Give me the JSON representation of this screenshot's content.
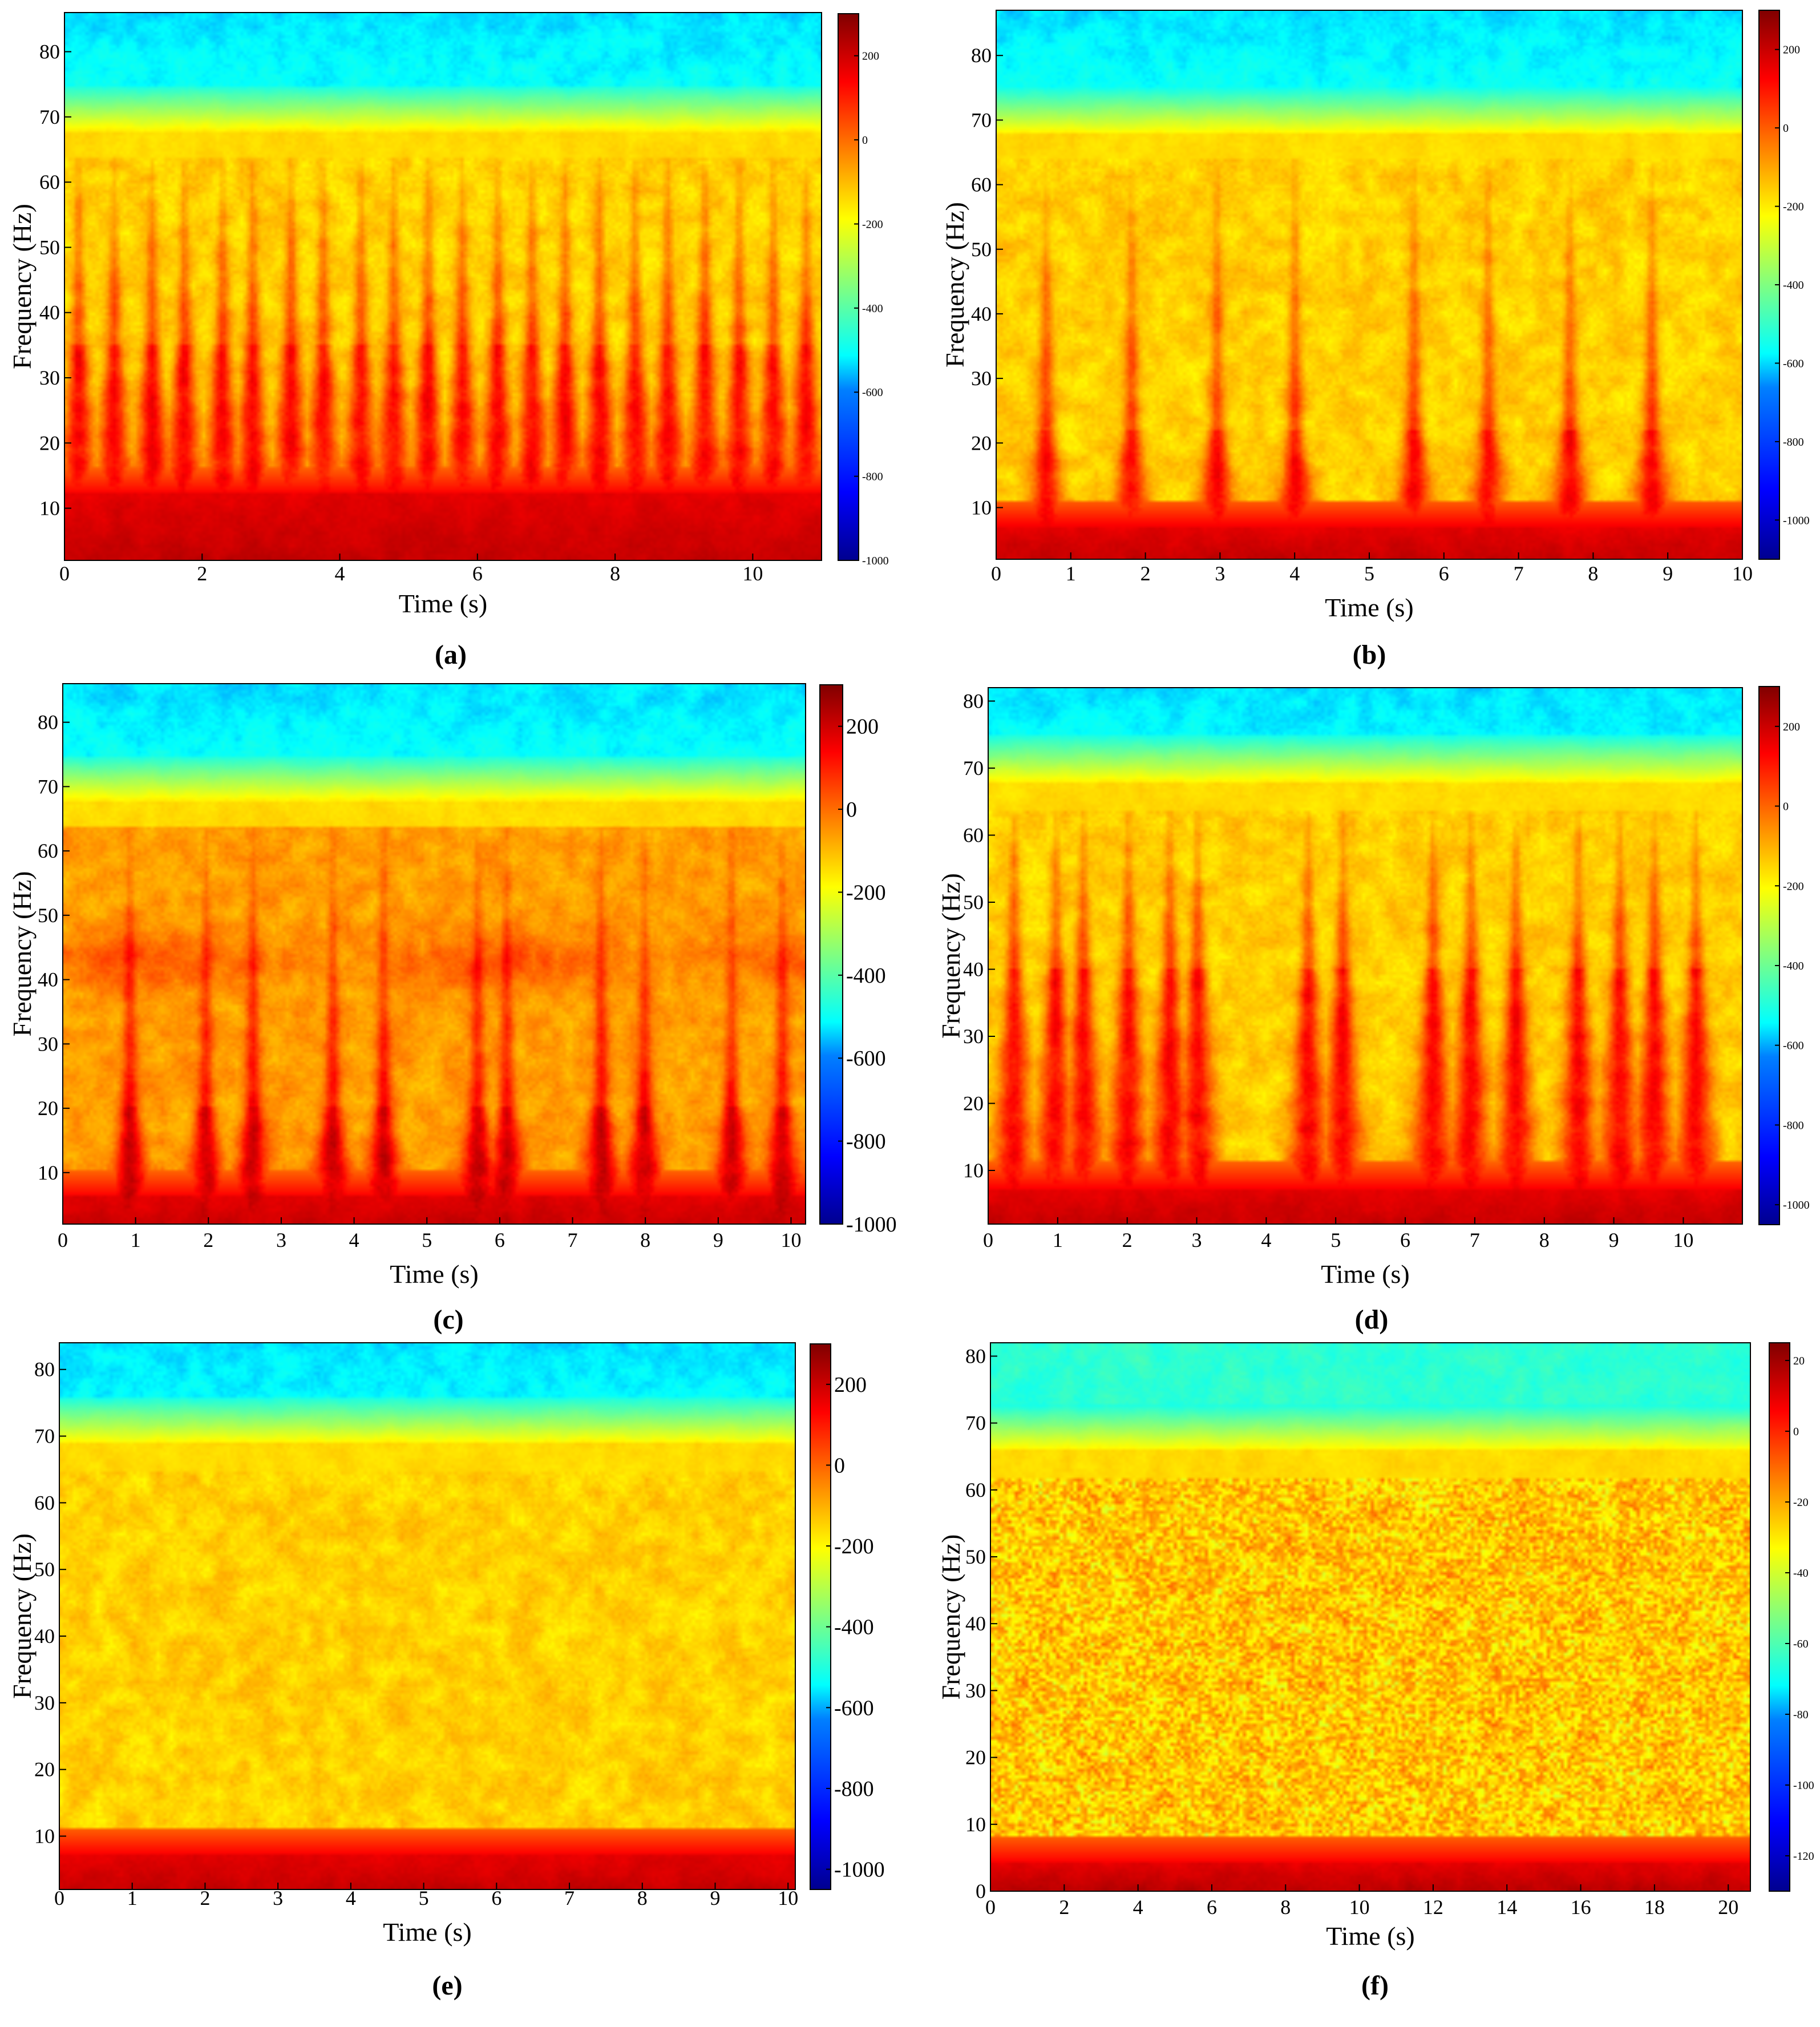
{
  "colors": {
    "jet_stops": [
      "#00008f",
      "#0000ff",
      "#0080ff",
      "#00ffff",
      "#80ff80",
      "#ffff00",
      "#ff8000",
      "#ff0000",
      "#800000"
    ]
  },
  "chart_data": [
    {
      "type": "heatmap",
      "panel_label": "(a)",
      "xlabel": "Time (s)",
      "ylabel": "Frequency (Hz)",
      "xlim": [
        0,
        11
      ],
      "ylim": [
        2,
        86
      ],
      "xticks": [
        0,
        2,
        4,
        6,
        8,
        10
      ],
      "yticks": [
        10,
        20,
        30,
        40,
        50,
        60,
        70,
        80
      ],
      "colorbar": {
        "ticks": [
          200,
          0,
          -200,
          -400,
          -600,
          -800,
          -1000
        ],
        "range": [
          -1000,
          300
        ]
      },
      "pattern": "bursts",
      "burst_times": [
        0.18,
        0.7,
        1.25,
        1.72,
        2.28,
        2.72,
        3.28,
        3.75,
        4.3,
        4.78,
        5.28,
        5.78,
        6.3,
        6.8,
        7.28,
        7.78,
        8.3,
        8.78,
        9.32,
        9.82,
        10.32,
        10.8
      ],
      "burst_top_hz": 35,
      "base_band_hz": 12,
      "noise_cutoff_hz": 69
    },
    {
      "type": "heatmap",
      "panel_label": "(b)",
      "xlabel": "Time (s)",
      "ylabel": "Frequency (Hz)",
      "xlim": [
        0,
        10
      ],
      "ylim": [
        2,
        87
      ],
      "xticks": [
        0,
        1,
        2,
        3,
        4,
        5,
        6,
        7,
        8,
        9,
        10
      ],
      "yticks": [
        10,
        20,
        30,
        40,
        50,
        60,
        70,
        80
      ],
      "colorbar": {
        "ticks": [
          200,
          0,
          -200,
          -400,
          -600,
          -800,
          -1000
        ],
        "range": [
          -1100,
          300
        ]
      },
      "pattern": "bursts",
      "burst_times": [
        0.65,
        1.8,
        2.95,
        4.0,
        5.6,
        6.6,
        7.7,
        8.8
      ],
      "burst_top_hz": 22,
      "base_band_hz": 7,
      "noise_cutoff_hz": 69
    },
    {
      "type": "heatmap",
      "panel_label": "(c)",
      "xlabel": "Time (s)",
      "ylabel": "Frequency (Hz)",
      "xlim": [
        0,
        10.2
      ],
      "ylim": [
        2,
        86
      ],
      "xticks": [
        0,
        1,
        2,
        3,
        4,
        5,
        6,
        7,
        8,
        9,
        10
      ],
      "yticks": [
        10,
        20,
        30,
        40,
        50,
        60,
        70,
        80
      ],
      "colorbar": {
        "ticks": [
          200,
          0,
          -200,
          -400,
          -600,
          -800,
          -1000
        ],
        "range": [
          -1000,
          300
        ]
      },
      "pattern": "bursts_band",
      "burst_times": [
        0.9,
        1.95,
        2.6,
        3.7,
        4.4,
        5.7,
        6.1,
        7.4,
        8.0,
        9.2,
        9.9
      ],
      "burst_top_hz": 20,
      "base_band_hz": 6,
      "band_hz": 43,
      "noise_cutoff_hz": 69
    },
    {
      "type": "heatmap",
      "panel_label": "(d)",
      "xlabel": "Time (s)",
      "ylabel": "Frequency (Hz)",
      "xlim": [
        0,
        10.85
      ],
      "ylim": [
        2,
        82
      ],
      "xticks": [
        0,
        1,
        2,
        3,
        4,
        5,
        6,
        7,
        8,
        9,
        10
      ],
      "yticks": [
        10,
        20,
        30,
        40,
        50,
        60,
        70,
        80
      ],
      "colorbar": {
        "ticks": [
          200,
          0,
          -200,
          -400,
          -600,
          -800,
          -1000
        ],
        "range": [
          -1050,
          300
        ]
      },
      "pattern": "bursts",
      "burst_times": [
        0.35,
        0.95,
        1.35,
        2.0,
        2.6,
        3.0,
        4.6,
        5.1,
        6.4,
        6.95,
        7.6,
        8.5,
        9.1,
        9.6,
        10.2
      ],
      "burst_top_hz": 40,
      "base_band_hz": 7,
      "noise_cutoff_hz": 69
    },
    {
      "type": "heatmap",
      "panel_label": "(e)",
      "xlabel": "Time (s)",
      "ylabel": "Frequency (Hz)",
      "xlim": [
        0,
        10.1
      ],
      "ylim": [
        2,
        84
      ],
      "xticks": [
        0,
        1,
        2,
        3,
        4,
        5,
        6,
        7,
        8,
        9,
        10
      ],
      "yticks": [
        10,
        20,
        30,
        40,
        50,
        60,
        70,
        80
      ],
      "colorbar": {
        "ticks": [
          200,
          0,
          -200,
          -400,
          -600,
          -800,
          -1000
        ],
        "range": [
          -1050,
          300
        ]
      },
      "pattern": "uniform",
      "burst_times": [],
      "burst_top_hz": 0,
      "base_band_hz": 7,
      "noise_cutoff_hz": 70
    },
    {
      "type": "heatmap",
      "panel_label": "(f)",
      "xlabel": "Time (s)",
      "ylabel": "Frequency (Hz)",
      "xlim": [
        0,
        20.6
      ],
      "ylim": [
        0,
        82
      ],
      "xticks": [
        0,
        2,
        4,
        6,
        8,
        10,
        12,
        14,
        16,
        18,
        20
      ],
      "yticks": [
        0,
        10,
        20,
        30,
        40,
        50,
        60,
        70,
        80
      ],
      "colorbar": {
        "ticks": [
          20,
          0,
          -20,
          -40,
          -60,
          -80,
          -100,
          -120
        ],
        "range": [
          -130,
          25
        ]
      },
      "pattern": "speckle",
      "burst_times": [],
      "burst_top_hz": 0,
      "base_band_hz": 4,
      "noise_cutoff_hz": 67
    }
  ]
}
